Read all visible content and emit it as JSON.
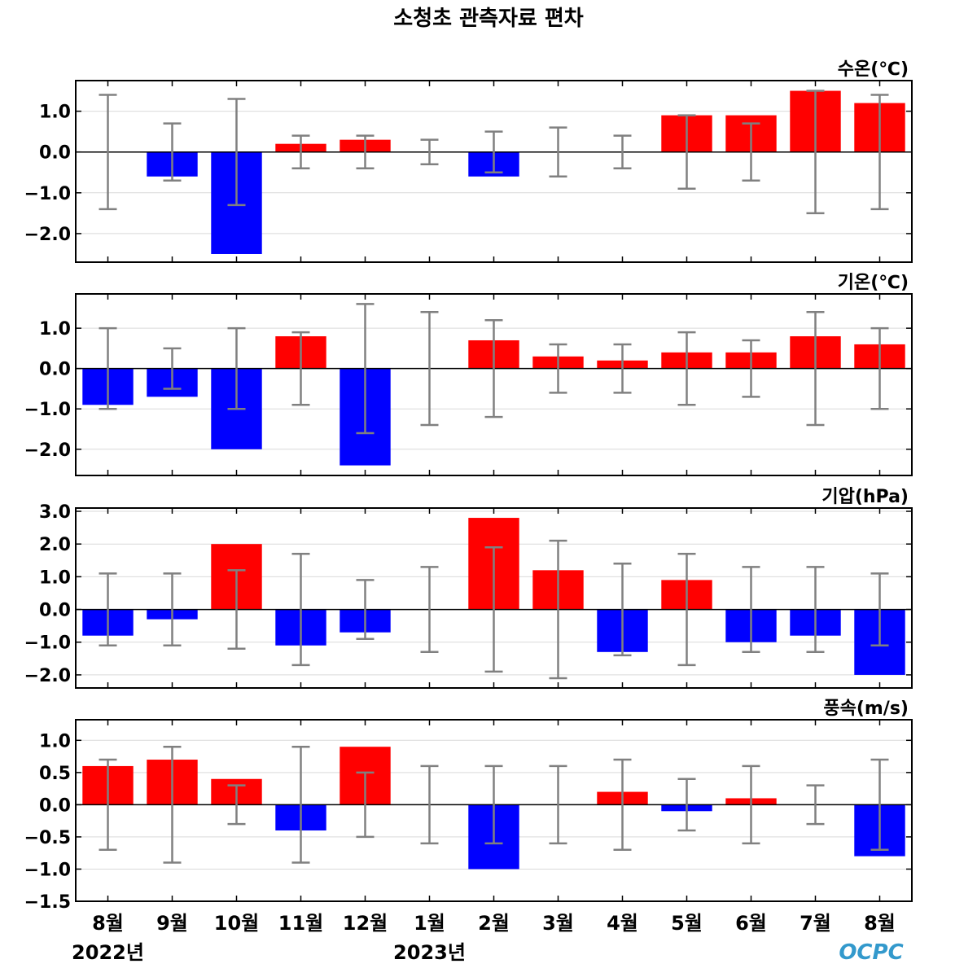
{
  "chart_data": {
    "type": "bar",
    "title": "소청초 관측자료 편차",
    "categories": [
      "8월",
      "9월",
      "10월",
      "11월",
      "12월",
      "1월",
      "2월",
      "3월",
      "4월",
      "5월",
      "6월",
      "7월",
      "8월"
    ],
    "years": [
      {
        "label": "2022년",
        "category_index": 0
      },
      {
        "label": "2023년",
        "category_index": 5
      }
    ],
    "positive_color": "#ff0000",
    "negative_color": "#0000ff",
    "errorbar_color": "#808080",
    "grid": true,
    "panels": [
      {
        "name": "water-temperature",
        "unit": "수온(℃)",
        "ylim": [
          -2.7,
          1.75
        ],
        "yticks": [
          1.0,
          0.0,
          -1.0,
          -2.0
        ],
        "tick_labels": [
          "1.0",
          "0.0",
          "−1.0",
          "−2.0"
        ],
        "values": [
          0.0,
          -0.6,
          -2.5,
          0.2,
          0.3,
          0.0,
          -0.6,
          0.0,
          0.0,
          0.9,
          0.9,
          1.5,
          1.2
        ],
        "errors": [
          1.4,
          0.7,
          1.3,
          0.4,
          0.4,
          0.3,
          0.5,
          0.6,
          0.4,
          0.9,
          0.7,
          1.5,
          1.4
        ]
      },
      {
        "name": "air-temperature",
        "unit": "기온(℃)",
        "ylim": [
          -2.65,
          1.85
        ],
        "yticks": [
          1.0,
          0.0,
          -1.0,
          -2.0
        ],
        "tick_labels": [
          "1.0",
          "0.0",
          "−1.0",
          "−2.0"
        ],
        "values": [
          -0.9,
          -0.7,
          -2.0,
          0.8,
          -2.4,
          0.0,
          0.7,
          0.3,
          0.2,
          0.4,
          0.4,
          0.8,
          0.6
        ],
        "errors": [
          1.0,
          0.5,
          1.0,
          0.9,
          1.6,
          1.4,
          1.2,
          0.6,
          0.6,
          0.9,
          0.7,
          1.4,
          1.0
        ]
      },
      {
        "name": "air-pressure",
        "unit": "기압(hPa)",
        "ylim": [
          -2.4,
          3.1
        ],
        "yticks": [
          3.0,
          2.0,
          1.0,
          0.0,
          -1.0,
          -2.0
        ],
        "tick_labels": [
          "3.0",
          "2.0",
          "1.0",
          "0.0",
          "−1.0",
          "−2.0"
        ],
        "values": [
          -0.8,
          -0.3,
          2.0,
          -1.1,
          -0.7,
          0.0,
          2.8,
          1.2,
          -1.3,
          0.9,
          -1.0,
          -0.8,
          -2.0
        ],
        "errors": [
          1.1,
          1.1,
          1.2,
          1.7,
          0.9,
          1.3,
          1.9,
          2.1,
          1.4,
          1.7,
          1.3,
          1.3,
          1.1
        ]
      },
      {
        "name": "wind-speed",
        "unit": "풍속(m/s)",
        "ylim": [
          -1.5,
          1.32
        ],
        "yticks": [
          1.0,
          0.5,
          0.0,
          -0.5,
          -1.0,
          -1.5
        ],
        "tick_labels": [
          "1.0",
          "0.5",
          "0.0",
          "−0.5",
          "−1.0",
          "−1.5"
        ],
        "values": [
          0.6,
          0.7,
          0.4,
          -0.4,
          0.9,
          0.0,
          -1.0,
          0.0,
          0.2,
          -0.1,
          0.1,
          0.0,
          -0.8
        ],
        "errors": [
          0.7,
          0.9,
          0.3,
          0.9,
          0.5,
          0.6,
          0.6,
          0.6,
          0.7,
          0.4,
          0.6,
          0.3,
          0.7
        ]
      }
    ]
  },
  "logo_text": "OCPC"
}
